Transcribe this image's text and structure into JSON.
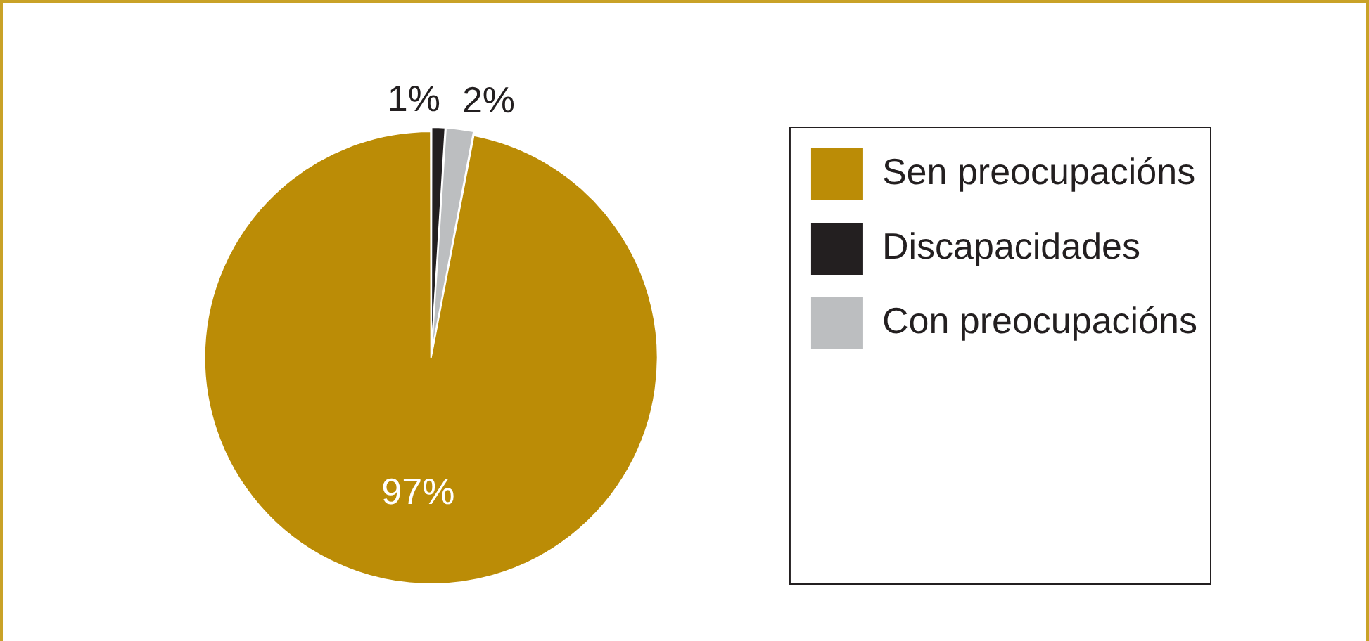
{
  "chart_data": {
    "type": "pie",
    "categories": [
      "Sen preocupacións",
      "Discapacidades",
      "Con preocupacións"
    ],
    "values": [
      97,
      1,
      2
    ],
    "colors": [
      "#bb8c06",
      "#231f20",
      "#bcbec0"
    ],
    "value_labels": [
      "97%",
      "1%",
      "2%"
    ],
    "legend": "right"
  }
}
